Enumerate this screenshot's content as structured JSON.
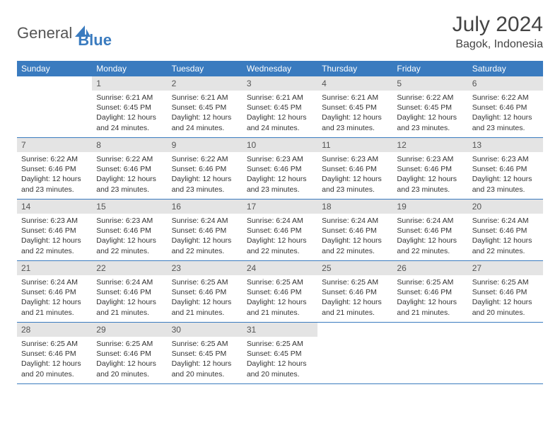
{
  "brand": {
    "part1": "General",
    "part2": "Blue"
  },
  "title": "July 2024",
  "location": "Bagok, Indonesia",
  "colors": {
    "header_bg": "#3a7bbf",
    "header_text": "#ffffff",
    "daynum_bg": "#e4e4e4",
    "daynum_text": "#555555",
    "body_text": "#333333",
    "week_border": "#3a7bbf",
    "page_bg": "#ffffff",
    "logo_general": "#555555",
    "logo_blue": "#3a7bbf"
  },
  "fonts": {
    "title_size_pt": 22,
    "location_size_pt": 12,
    "weekday_size_pt": 9,
    "daynum_size_pt": 9,
    "body_size_pt": 8
  },
  "weekdays": [
    "Sunday",
    "Monday",
    "Tuesday",
    "Wednesday",
    "Thursday",
    "Friday",
    "Saturday"
  ],
  "weeks": [
    [
      {
        "empty": true
      },
      {
        "n": "1",
        "sr": "Sunrise: 6:21 AM",
        "ss": "Sunset: 6:45 PM",
        "dl": "Daylight: 12 hours and 24 minutes."
      },
      {
        "n": "2",
        "sr": "Sunrise: 6:21 AM",
        "ss": "Sunset: 6:45 PM",
        "dl": "Daylight: 12 hours and 24 minutes."
      },
      {
        "n": "3",
        "sr": "Sunrise: 6:21 AM",
        "ss": "Sunset: 6:45 PM",
        "dl": "Daylight: 12 hours and 24 minutes."
      },
      {
        "n": "4",
        "sr": "Sunrise: 6:21 AM",
        "ss": "Sunset: 6:45 PM",
        "dl": "Daylight: 12 hours and 23 minutes."
      },
      {
        "n": "5",
        "sr": "Sunrise: 6:22 AM",
        "ss": "Sunset: 6:45 PM",
        "dl": "Daylight: 12 hours and 23 minutes."
      },
      {
        "n": "6",
        "sr": "Sunrise: 6:22 AM",
        "ss": "Sunset: 6:46 PM",
        "dl": "Daylight: 12 hours and 23 minutes."
      }
    ],
    [
      {
        "n": "7",
        "sr": "Sunrise: 6:22 AM",
        "ss": "Sunset: 6:46 PM",
        "dl": "Daylight: 12 hours and 23 minutes."
      },
      {
        "n": "8",
        "sr": "Sunrise: 6:22 AM",
        "ss": "Sunset: 6:46 PM",
        "dl": "Daylight: 12 hours and 23 minutes."
      },
      {
        "n": "9",
        "sr": "Sunrise: 6:22 AM",
        "ss": "Sunset: 6:46 PM",
        "dl": "Daylight: 12 hours and 23 minutes."
      },
      {
        "n": "10",
        "sr": "Sunrise: 6:23 AM",
        "ss": "Sunset: 6:46 PM",
        "dl": "Daylight: 12 hours and 23 minutes."
      },
      {
        "n": "11",
        "sr": "Sunrise: 6:23 AM",
        "ss": "Sunset: 6:46 PM",
        "dl": "Daylight: 12 hours and 23 minutes."
      },
      {
        "n": "12",
        "sr": "Sunrise: 6:23 AM",
        "ss": "Sunset: 6:46 PM",
        "dl": "Daylight: 12 hours and 23 minutes."
      },
      {
        "n": "13",
        "sr": "Sunrise: 6:23 AM",
        "ss": "Sunset: 6:46 PM",
        "dl": "Daylight: 12 hours and 23 minutes."
      }
    ],
    [
      {
        "n": "14",
        "sr": "Sunrise: 6:23 AM",
        "ss": "Sunset: 6:46 PM",
        "dl": "Daylight: 12 hours and 22 minutes."
      },
      {
        "n": "15",
        "sr": "Sunrise: 6:23 AM",
        "ss": "Sunset: 6:46 PM",
        "dl": "Daylight: 12 hours and 22 minutes."
      },
      {
        "n": "16",
        "sr": "Sunrise: 6:24 AM",
        "ss": "Sunset: 6:46 PM",
        "dl": "Daylight: 12 hours and 22 minutes."
      },
      {
        "n": "17",
        "sr": "Sunrise: 6:24 AM",
        "ss": "Sunset: 6:46 PM",
        "dl": "Daylight: 12 hours and 22 minutes."
      },
      {
        "n": "18",
        "sr": "Sunrise: 6:24 AM",
        "ss": "Sunset: 6:46 PM",
        "dl": "Daylight: 12 hours and 22 minutes."
      },
      {
        "n": "19",
        "sr": "Sunrise: 6:24 AM",
        "ss": "Sunset: 6:46 PM",
        "dl": "Daylight: 12 hours and 22 minutes."
      },
      {
        "n": "20",
        "sr": "Sunrise: 6:24 AM",
        "ss": "Sunset: 6:46 PM",
        "dl": "Daylight: 12 hours and 22 minutes."
      }
    ],
    [
      {
        "n": "21",
        "sr": "Sunrise: 6:24 AM",
        "ss": "Sunset: 6:46 PM",
        "dl": "Daylight: 12 hours and 21 minutes."
      },
      {
        "n": "22",
        "sr": "Sunrise: 6:24 AM",
        "ss": "Sunset: 6:46 PM",
        "dl": "Daylight: 12 hours and 21 minutes."
      },
      {
        "n": "23",
        "sr": "Sunrise: 6:25 AM",
        "ss": "Sunset: 6:46 PM",
        "dl": "Daylight: 12 hours and 21 minutes."
      },
      {
        "n": "24",
        "sr": "Sunrise: 6:25 AM",
        "ss": "Sunset: 6:46 PM",
        "dl": "Daylight: 12 hours and 21 minutes."
      },
      {
        "n": "25",
        "sr": "Sunrise: 6:25 AM",
        "ss": "Sunset: 6:46 PM",
        "dl": "Daylight: 12 hours and 21 minutes."
      },
      {
        "n": "26",
        "sr": "Sunrise: 6:25 AM",
        "ss": "Sunset: 6:46 PM",
        "dl": "Daylight: 12 hours and 21 minutes."
      },
      {
        "n": "27",
        "sr": "Sunrise: 6:25 AM",
        "ss": "Sunset: 6:46 PM",
        "dl": "Daylight: 12 hours and 20 minutes."
      }
    ],
    [
      {
        "n": "28",
        "sr": "Sunrise: 6:25 AM",
        "ss": "Sunset: 6:46 PM",
        "dl": "Daylight: 12 hours and 20 minutes."
      },
      {
        "n": "29",
        "sr": "Sunrise: 6:25 AM",
        "ss": "Sunset: 6:46 PM",
        "dl": "Daylight: 12 hours and 20 minutes."
      },
      {
        "n": "30",
        "sr": "Sunrise: 6:25 AM",
        "ss": "Sunset: 6:45 PM",
        "dl": "Daylight: 12 hours and 20 minutes."
      },
      {
        "n": "31",
        "sr": "Sunrise: 6:25 AM",
        "ss": "Sunset: 6:45 PM",
        "dl": "Daylight: 12 hours and 20 minutes."
      },
      {
        "empty": true
      },
      {
        "empty": true
      },
      {
        "empty": true
      }
    ]
  ]
}
